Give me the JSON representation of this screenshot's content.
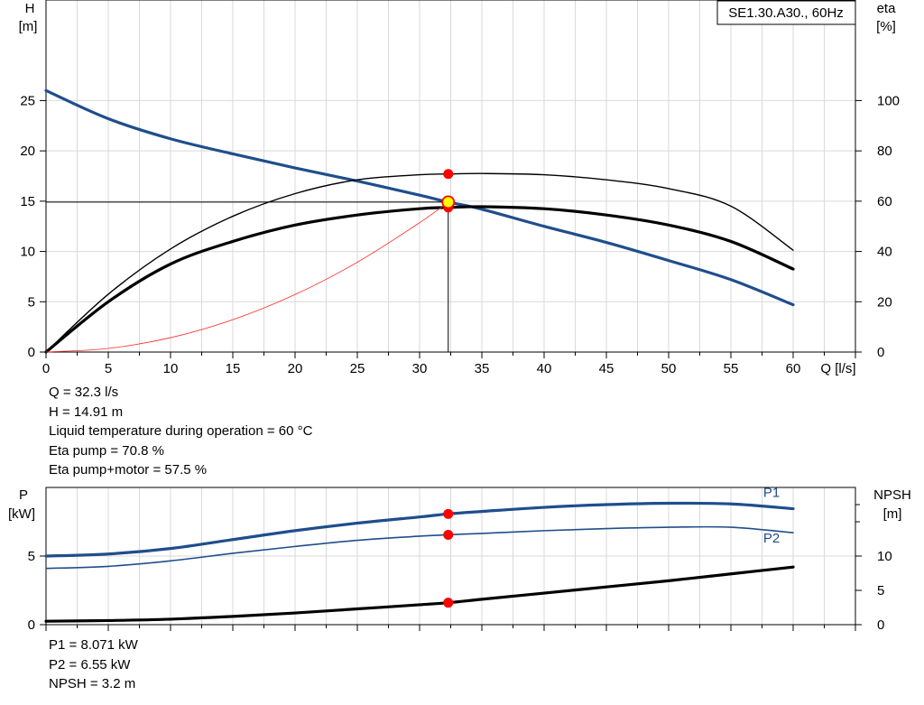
{
  "chart_data": [
    {
      "type": "line",
      "legend_box": "SE1.30.A30., 60Hz",
      "legend_placement": "top-right",
      "grid": true,
      "xlabel": "Q [l/s]",
      "ylabel_left": [
        "H",
        "[m]"
      ],
      "ylabel_right": [
        "eta",
        "[%]"
      ],
      "xlim": [
        0,
        65
      ],
      "ylim_left": [
        0,
        35
      ],
      "ylim_right": [
        0,
        140
      ],
      "x_ticks": [
        0,
        5,
        10,
        15,
        20,
        25,
        30,
        35,
        40,
        45,
        50,
        55,
        60
      ],
      "y_ticks_left": [
        0,
        5,
        10,
        15,
        20,
        25
      ],
      "y_ticks_right": [
        0,
        20,
        40,
        60,
        80,
        100
      ],
      "series": [
        {
          "axis": "left",
          "color": "#1f4e8c",
          "width": 3.2,
          "x": [
            0,
            5,
            10,
            15,
            20,
            25,
            30,
            32.3,
            35,
            40,
            45,
            50,
            55,
            60
          ],
          "y": [
            26,
            23.2,
            21.2,
            19.7,
            18.3,
            17.0,
            15.6,
            14.91,
            14.2,
            12.5,
            10.9,
            9.1,
            7.2,
            4.7
          ]
        },
        {
          "axis": "right",
          "color": "#000000",
          "width": 1.4,
          "x": [
            0,
            5,
            10,
            15,
            20,
            25,
            30,
            32.3,
            35,
            40,
            45,
            50,
            55,
            60
          ],
          "y": [
            0,
            23,
            41,
            54,
            63,
            68.5,
            70.5,
            70.8,
            71,
            70.5,
            68.5,
            65,
            58,
            40.5
          ]
        },
        {
          "axis": "right",
          "color": "#000000",
          "width": 3.2,
          "x": [
            0,
            5,
            10,
            15,
            20,
            25,
            30,
            32.3,
            35,
            40,
            45,
            50,
            55,
            60
          ],
          "y": [
            0,
            20,
            35,
            44,
            50.5,
            54.5,
            57,
            57.5,
            57.8,
            57,
            54.5,
            50.5,
            44,
            33
          ]
        },
        {
          "axis": "left",
          "color": "#ff2a2a",
          "width": 0.8,
          "x": [
            0,
            5,
            10,
            15,
            20,
            25,
            30,
            32.3
          ],
          "y": [
            0,
            0.36,
            1.43,
            3.22,
            5.72,
            8.93,
            12.86,
            14.91
          ]
        }
      ],
      "operating_point": {
        "x": 32.3,
        "y": 14.91
      },
      "marker_points": [
        {
          "axis": "right",
          "x": 32.3,
          "y": 70.8
        },
        {
          "axis": "right",
          "x": 32.3,
          "y": 57.5
        }
      ],
      "readout": [
        "Q = 32.3 l/s",
        "H = 14.91 m",
        "Liquid temperature during operation = 60 °C",
        "Eta pump = 70.8 %",
        "Eta pump+motor = 57.5 %"
      ]
    },
    {
      "type": "line",
      "grid": true,
      "ylabel_left": [
        "P",
        "[kW]"
      ],
      "ylabel_right": [
        "NPSH",
        "[m]"
      ],
      "xlim": [
        0,
        65
      ],
      "ylim_left": [
        0,
        10
      ],
      "ylim_right": [
        0,
        20
      ],
      "x_ticks": [
        0,
        5,
        10,
        15,
        20,
        25,
        30,
        35,
        40,
        45,
        50,
        55,
        60
      ],
      "y_ticks_left": [
        0,
        5
      ],
      "y_ticks_right": [
        0,
        5,
        10
      ],
      "series": [
        {
          "name": "P1",
          "axis": "left",
          "color": "#1f4e8c",
          "width": 3.2,
          "x": [
            0,
            5,
            10,
            15,
            20,
            25,
            30,
            32.3,
            35,
            40,
            45,
            50,
            55,
            60
          ],
          "y": [
            5.0,
            5.15,
            5.55,
            6.2,
            6.85,
            7.4,
            7.85,
            8.071,
            8.25,
            8.55,
            8.75,
            8.85,
            8.8,
            8.45
          ]
        },
        {
          "name": "P2",
          "axis": "left",
          "color": "#1f4e8c",
          "width": 1.6,
          "x": [
            0,
            5,
            10,
            15,
            20,
            25,
            30,
            32.3,
            35,
            40,
            45,
            50,
            55,
            60
          ],
          "y": [
            4.1,
            4.25,
            4.65,
            5.2,
            5.7,
            6.15,
            6.45,
            6.55,
            6.65,
            6.85,
            7.0,
            7.1,
            7.1,
            6.7
          ]
        },
        {
          "name": "NPSH",
          "axis": "right",
          "color": "#000000",
          "width": 3.2,
          "x": [
            0,
            5,
            10,
            15,
            20,
            25,
            30,
            32.3,
            35,
            40,
            45,
            50,
            55,
            60
          ],
          "y": [
            0.5,
            0.6,
            0.8,
            1.2,
            1.7,
            2.3,
            2.9,
            3.2,
            3.7,
            4.6,
            5.5,
            6.4,
            7.4,
            8.4
          ]
        }
      ],
      "marker_points": [
        {
          "axis": "left",
          "x": 32.3,
          "y": 8.071
        },
        {
          "axis": "left",
          "x": 32.3,
          "y": 6.55
        },
        {
          "axis": "right",
          "x": 32.3,
          "y": 3.2
        }
      ],
      "series_labels": [
        {
          "text": "P1",
          "x": 57.6,
          "y": 9.3,
          "axis": "left"
        },
        {
          "text": "P2",
          "x": 57.6,
          "y": 6.0,
          "axis": "left"
        }
      ],
      "readout": [
        "P1 = 8.071 kW",
        "P2 = 6.55 kW",
        "NPSH = 3.2 m"
      ]
    }
  ]
}
